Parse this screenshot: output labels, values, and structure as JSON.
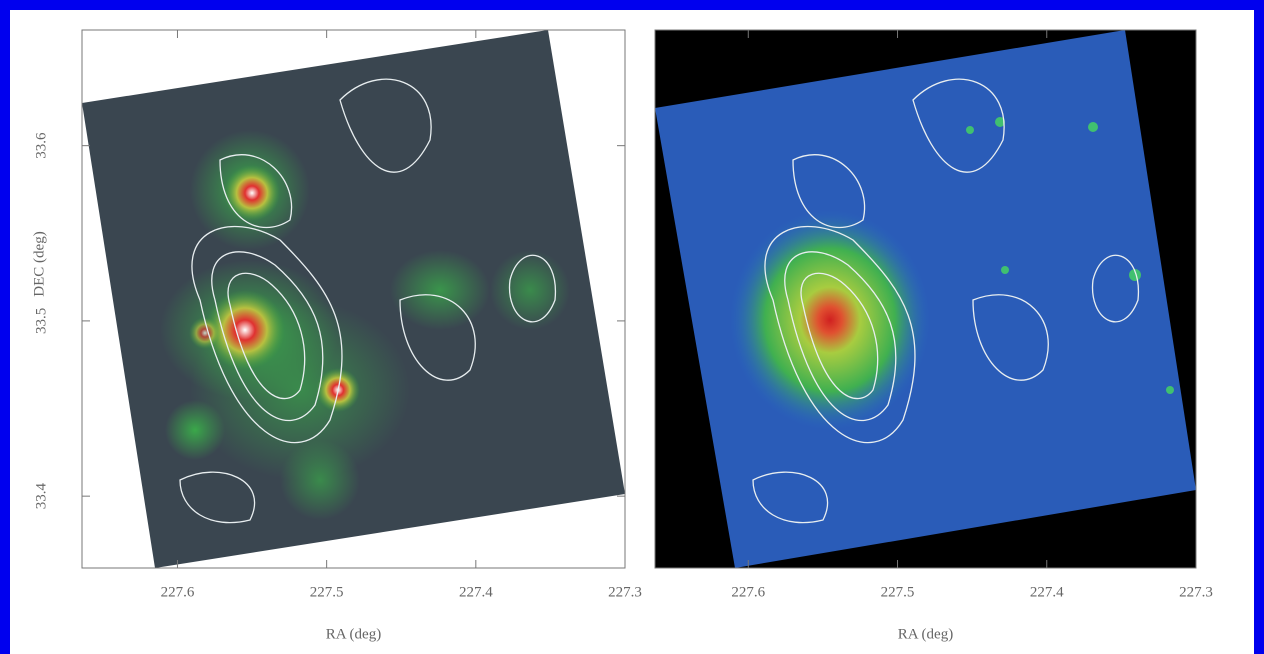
{
  "chart_data": [
    {
      "type": "image",
      "xlabel": "RA (deg)",
      "ylabel": "DEC (deg)",
      "xlim": [
        227.664,
        227.3
      ],
      "ylim": [
        33.359,
        33.666
      ],
      "xticks": [
        227.6,
        227.5,
        227.4,
        227.3
      ],
      "yticks": [
        33.4,
        33.5,
        33.6
      ]
    },
    {
      "type": "image",
      "xlabel": "RA (deg)",
      "xlim": [
        227.6625,
        227.3
      ],
      "ylim": [
        33.359,
        33.666
      ],
      "xticks": [
        227.6,
        227.5,
        227.4,
        227.3
      ]
    }
  ]
}
